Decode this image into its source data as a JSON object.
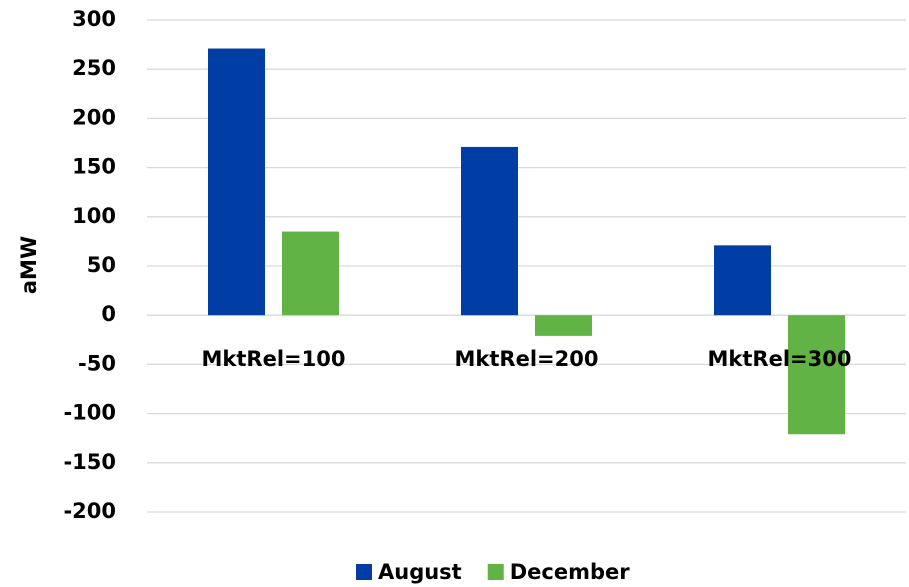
{
  "chart_data": {
    "type": "bar",
    "y_label": "aMW",
    "categories": [
      "MktRel=100",
      "MktRel=200",
      "MktRel=300"
    ],
    "series": [
      {
        "name": "August",
        "color": "#003da5",
        "values": [
          271,
          171,
          71
        ]
      },
      {
        "name": "December",
        "color": "#62b346",
        "values": [
          85,
          -21,
          -121
        ]
      }
    ],
    "ylim": [
      -200,
      300
    ],
    "yticks": [
      -200,
      -150,
      -100,
      -50,
      0,
      50,
      100,
      150,
      200,
      250,
      300
    ],
    "grid": true,
    "legend": "bottom"
  }
}
